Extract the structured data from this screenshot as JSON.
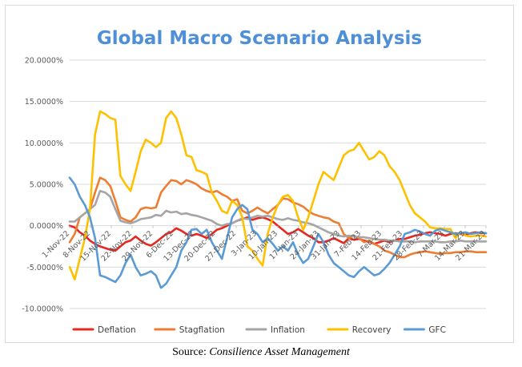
{
  "chart_data": {
    "type": "line",
    "title": "Global Macro Scenario Analysis",
    "title_color": "#4f8fd8",
    "ylim": [
      -0.1,
      0.2
    ],
    "y_ticks": [
      {
        "value": 0.2,
        "label": "20.0000%"
      },
      {
        "value": 0.15,
        "label": "15.0000%"
      },
      {
        "value": 0.1,
        "label": "10.0000%"
      },
      {
        "value": 0.05,
        "label": "5.0000%"
      },
      {
        "value": 0.0,
        "label": "0.0000%"
      },
      {
        "value": -0.05,
        "label": "-5.0000%"
      },
      {
        "value": -0.1,
        "label": "-10.0000%"
      }
    ],
    "x_ticks": [
      "1-Nov-22",
      "8-Nov-22",
      "15-Nov-22",
      "22-Nov-22",
      "29-Nov-22",
      "6-Dec-22",
      "13-Dec-22",
      "20-Dec-22",
      "27-Dec-22",
      "3-Jan-23",
      "10-Jan-23",
      "17-Jan-23",
      "24-Jan-23",
      "31-Jan-23",
      "7-Feb-23",
      "14-Feb-23",
      "21-Feb-23",
      "28-Feb-23",
      "7-Mar-23",
      "14-Mar-23",
      "21-Mar-23"
    ],
    "grid": "horizontal",
    "legend_position": "bottom",
    "series": [
      {
        "name": "Deflation",
        "color": "#e8271f",
        "values": [
          0.0,
          -0.002,
          -0.008,
          -0.012,
          -0.018,
          -0.022,
          -0.025,
          -0.027,
          -0.029,
          -0.03,
          -0.025,
          -0.02,
          -0.018,
          -0.013,
          -0.018,
          -0.022,
          -0.024,
          -0.02,
          -0.015,
          -0.01,
          -0.008,
          -0.003,
          -0.006,
          -0.01,
          -0.012,
          -0.01,
          -0.012,
          -0.015,
          -0.01,
          -0.005,
          -0.003,
          0.0,
          0.003,
          0.006,
          0.008,
          0.01,
          0.007,
          0.009,
          0.01,
          0.008,
          0.005,
          0.0,
          -0.005,
          -0.01,
          -0.008,
          -0.004,
          -0.008,
          -0.012,
          -0.015,
          -0.02,
          -0.02,
          -0.018,
          -0.015,
          -0.018,
          -0.021,
          -0.015,
          -0.017,
          -0.016,
          -0.018,
          -0.019,
          -0.022,
          -0.02,
          -0.018,
          -0.02,
          -0.018,
          -0.016,
          -0.016,
          -0.014,
          -0.012,
          -0.011,
          -0.009,
          -0.008,
          -0.009,
          -0.01,
          -0.012,
          -0.01,
          -0.009,
          -0.01,
          -0.011,
          -0.009,
          -0.008,
          -0.009,
          -0.009
        ]
      },
      {
        "name": "Stagflation",
        "color": "#ee7d31",
        "values": [
          -0.02,
          -0.01,
          0.01,
          0.015,
          0.02,
          0.04,
          0.058,
          0.055,
          0.048,
          0.03,
          0.01,
          0.007,
          0.005,
          0.01,
          0.02,
          0.022,
          0.021,
          0.022,
          0.04,
          0.048,
          0.055,
          0.054,
          0.05,
          0.055,
          0.053,
          0.05,
          0.045,
          0.042,
          0.04,
          0.042,
          0.038,
          0.035,
          0.03,
          0.032,
          0.018,
          0.015,
          0.018,
          0.022,
          0.018,
          0.015,
          0.02,
          0.025,
          0.033,
          0.032,
          0.028,
          0.026,
          0.023,
          0.018,
          0.014,
          0.012,
          0.01,
          0.009,
          0.005,
          0.003,
          -0.01,
          -0.015,
          -0.012,
          -0.015,
          -0.02,
          -0.018,
          -0.022,
          -0.025,
          -0.03,
          -0.032,
          -0.035,
          -0.038,
          -0.038,
          -0.035,
          -0.033,
          -0.032,
          -0.031,
          -0.032,
          -0.033,
          -0.034,
          -0.033,
          -0.033,
          -0.032,
          -0.032,
          -0.031,
          -0.031,
          -0.032,
          -0.032,
          -0.032
        ]
      },
      {
        "name": "Inflation",
        "color": "#a5a5a5",
        "values": [
          0.005,
          0.005,
          0.01,
          0.015,
          0.02,
          0.025,
          0.042,
          0.04,
          0.035,
          0.02,
          0.006,
          0.004,
          0.003,
          0.005,
          0.008,
          0.009,
          0.01,
          0.013,
          0.012,
          0.018,
          0.016,
          0.017,
          0.014,
          0.015,
          0.013,
          0.012,
          0.01,
          0.008,
          0.006,
          0.002,
          0.0,
          0.002,
          0.003,
          0.006,
          0.009,
          0.008,
          0.01,
          0.012,
          0.011,
          0.012,
          0.01,
          0.008,
          0.007,
          0.009,
          0.007,
          0.006,
          0.004,
          0.003,
          0.001,
          -0.002,
          -0.005,
          -0.008,
          -0.01,
          -0.012,
          -0.013,
          -0.012,
          -0.013,
          -0.014,
          -0.014,
          -0.015,
          -0.016,
          -0.017,
          -0.017,
          -0.018,
          -0.018,
          -0.019,
          -0.019,
          -0.019,
          -0.02,
          -0.019,
          -0.019,
          -0.019,
          -0.019,
          -0.02,
          -0.02,
          -0.019,
          -0.019,
          -0.018,
          -0.019,
          -0.019,
          -0.019,
          -0.019,
          -0.019
        ]
      },
      {
        "name": "Recovery",
        "color": "#fec100",
        "values": [
          -0.05,
          -0.065,
          -0.04,
          -0.015,
          0.02,
          0.11,
          0.138,
          0.135,
          0.13,
          0.128,
          0.06,
          0.05,
          0.042,
          0.065,
          0.09,
          0.104,
          0.1,
          0.095,
          0.1,
          0.13,
          0.138,
          0.13,
          0.11,
          0.085,
          0.083,
          0.067,
          0.065,
          0.062,
          0.04,
          0.03,
          0.018,
          0.015,
          0.03,
          0.025,
          0.01,
          -0.025,
          -0.03,
          -0.04,
          -0.048,
          -0.01,
          0.01,
          0.025,
          0.035,
          0.037,
          0.03,
          0.01,
          -0.005,
          0.01,
          0.03,
          0.05,
          0.065,
          0.06,
          0.055,
          0.07,
          0.085,
          0.09,
          0.092,
          0.1,
          0.09,
          0.08,
          0.083,
          0.09,
          0.085,
          0.072,
          0.065,
          0.055,
          0.04,
          0.025,
          0.015,
          0.01,
          0.005,
          -0.002,
          -0.003,
          -0.003,
          -0.004,
          -0.004,
          -0.015,
          -0.008,
          -0.012,
          -0.013,
          -0.012,
          -0.012,
          -0.013
        ]
      },
      {
        "name": "GFC",
        "color": "#5b9bd5",
        "values": [
          0.058,
          0.05,
          0.035,
          0.025,
          0.01,
          -0.015,
          -0.06,
          -0.062,
          -0.065,
          -0.068,
          -0.06,
          -0.045,
          -0.035,
          -0.05,
          -0.06,
          -0.058,
          -0.055,
          -0.06,
          -0.075,
          -0.07,
          -0.06,
          -0.05,
          -0.03,
          -0.02,
          -0.005,
          -0.004,
          -0.01,
          -0.005,
          -0.02,
          -0.03,
          -0.04,
          -0.015,
          0.01,
          0.02,
          0.025,
          0.02,
          -0.005,
          -0.01,
          -0.02,
          -0.015,
          -0.022,
          -0.03,
          -0.025,
          -0.03,
          -0.02,
          -0.035,
          -0.045,
          -0.04,
          -0.025,
          -0.01,
          -0.02,
          -0.035,
          -0.045,
          -0.05,
          -0.055,
          -0.06,
          -0.062,
          -0.055,
          -0.05,
          -0.055,
          -0.06,
          -0.058,
          -0.052,
          -0.045,
          -0.035,
          -0.025,
          -0.01,
          -0.008,
          -0.005,
          -0.007,
          -0.01,
          -0.012,
          -0.006,
          -0.004,
          -0.006,
          -0.008,
          -0.01,
          -0.009,
          -0.008,
          -0.01,
          -0.009,
          -0.008,
          -0.009
        ]
      }
    ]
  },
  "footer": {
    "source_label": "Source:",
    "source_name": "Consilience Asset Management"
  }
}
